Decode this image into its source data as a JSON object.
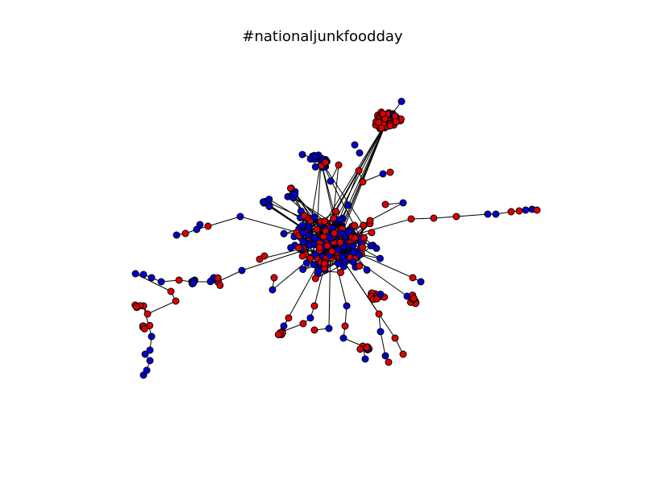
{
  "title": "#nationaljunkfoodday",
  "colors": {
    "background": "#ffffff",
    "node_a": "#0000cc",
    "node_b": "#dd0000",
    "edge": "#000000"
  },
  "graph": {
    "type": "network",
    "node_categories": [
      "blue",
      "red"
    ],
    "axes_visible": false
  }
}
